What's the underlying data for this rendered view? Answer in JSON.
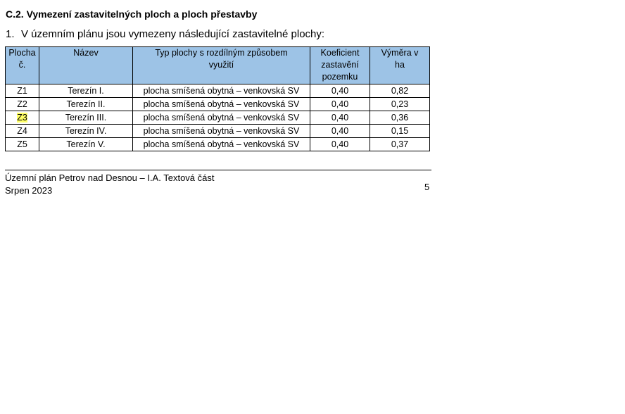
{
  "heading": "C.2. Vymezení zastavitelných ploch a ploch přestavby",
  "paragraph": {
    "number": "1.",
    "text": "V územním plánu jsou vymezeny následující zastavitelné plochy:"
  },
  "table": {
    "headers": [
      "Plocha č.",
      "Název",
      "Typ plochy s rozdílným způsobem využití",
      "Koeficient zastavění pozemku",
      "Výměra v ha"
    ],
    "header_color": "#9dc3e6",
    "rows": [
      [
        "Z1",
        "Terezín I.",
        "plocha smíšená obytná – venkovská SV",
        "0,40",
        "0,82"
      ],
      [
        "Z2",
        "Terezín II.",
        "plocha smíšená obytná – venkovská SV",
        "0,40",
        "0,23"
      ],
      [
        "Z3",
        "Terezín III.",
        "plocha smíšená obytná – venkovská SV",
        "0,40",
        "0,36"
      ],
      [
        "Z4",
        "Terezín IV.",
        "plocha smíšená obytná – venkovská SV",
        "0,40",
        "0,15"
      ],
      [
        "Z5",
        "Terezín V.",
        "plocha smíšená obytná – venkovská SV",
        "0,40",
        "0,37"
      ]
    ],
    "highlight_color": "#ffff66"
  },
  "footer": {
    "line1": "Územní plán Petrov nad Desnou – I.A. Textová část",
    "line2": "Srpen 2023",
    "page": "5"
  }
}
